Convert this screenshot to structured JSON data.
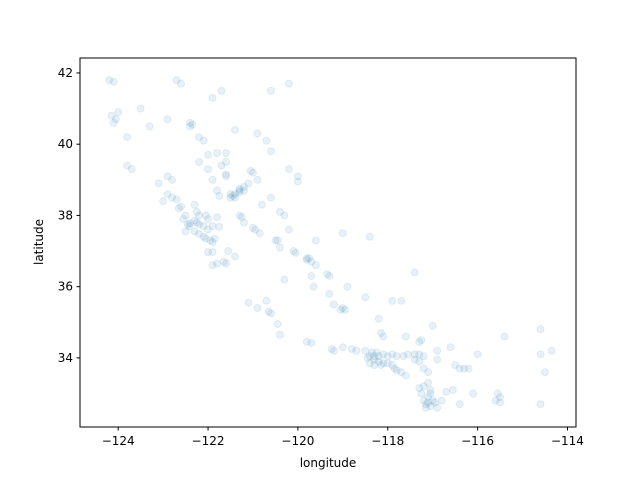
{
  "chart_data": {
    "type": "scatter",
    "xlabel": "longitude",
    "ylabel": "latitude",
    "color": "#1f77b4",
    "alpha": 0.1,
    "xlim": [
      -124.85,
      -113.81
    ],
    "ylim": [
      32.06,
      42.42
    ],
    "xticks": [
      {
        "value": -124,
        "label": "−124"
      },
      {
        "value": -122,
        "label": "−122"
      },
      {
        "value": -120,
        "label": "−120"
      },
      {
        "value": -118,
        "label": "−118"
      },
      {
        "value": -116,
        "label": "−116"
      },
      {
        "value": -114,
        "label": "−114"
      }
    ],
    "yticks": [
      34,
      36,
      38,
      40,
      42
    ],
    "x": [
      -124.2,
      -124.1,
      -124.15,
      -124.1,
      -124.05,
      -124.0,
      -123.8,
      -123.7,
      -123.8,
      -123.5,
      -123.3,
      -122.9,
      -122.4,
      -122.35,
      -122.4,
      -122.2,
      -122.1,
      -121.9,
      -122.6,
      -122.7,
      -121.7,
      -120.6,
      -120.2,
      -121.4,
      -120.9,
      -120.7,
      -121.8,
      -121.6,
      -121.6,
      -121.6,
      -121.6,
      -121.7,
      -122.0,
      -122.2,
      -122.0,
      -121.9,
      -121.0,
      -121.05,
      -120.9,
      -121.1,
      -120.2,
      -120.0,
      -120.0,
      -120.6,
      -121.5,
      -121.4,
      -121.3,
      -121.45,
      -121.3,
      -121.2,
      -121.5,
      -121.4,
      -121.75,
      -121.8,
      -121.2,
      -121.3,
      -122.4,
      -122.45,
      -122.42,
      -122.3,
      -122.25,
      -122.2,
      -122.1,
      -122.0,
      -122.05,
      -121.95,
      -121.85,
      -121.9,
      -122.1,
      -122.2,
      -122.3,
      -122.5,
      -122.0,
      -122.05,
      -122.2,
      -122.25,
      -122.5,
      -122.6,
      -122.7,
      -122.8,
      -122.3,
      -121.8,
      -121.9,
      -121.75,
      -122.65,
      -122.55,
      -121.9,
      -121.8,
      -121.65,
      -121.6,
      -122.0,
      -121.9,
      -121.55,
      -121.4,
      -123.0,
      -122.9,
      -123.1,
      -122.9,
      -122.8,
      -121.3,
      -121.25,
      -121.0,
      -120.95,
      -120.85,
      -120.5,
      -120.45,
      -120.1,
      -120.05,
      -119.8,
      -119.75,
      -119.7,
      -119.8,
      -119.3,
      -119.35,
      -119.6,
      -119.0,
      -119.05,
      -118.95,
      -119.2,
      -119.3,
      -119.7,
      -119.65,
      -120.3,
      -120.4,
      -121.2,
      -120.3,
      -120.4,
      -120.8,
      -120.6,
      -120.2,
      -119.6,
      -119.0,
      -118.4,
      -118.9,
      -118.5,
      -118.2,
      -117.9,
      -117.7,
      -117.4,
      -120.65,
      -120.6,
      -120.7,
      -120.45,
      -120.4,
      -119.8,
      -119.7,
      -119.25,
      -119.2,
      -119.0,
      -118.8,
      -118.7,
      -121.1,
      -120.9,
      -118.4,
      -118.3,
      -118.2,
      -118.3,
      -118.2,
      -118.1,
      -118.0,
      -118.35,
      -118.25,
      -118.5,
      -118.45,
      -118.1,
      -118.0,
      -117.9,
      -117.8,
      -117.9,
      -117.85,
      -117.8,
      -117.7,
      -117.6,
      -118.15,
      -118.3,
      -118.4,
      -117.65,
      -117.55,
      -117.4,
      -117.3,
      -117.2,
      -117.4,
      -117.3,
      -117.2,
      -117.1,
      -117.25,
      -117.3,
      -117.0,
      -117.6,
      -118.1,
      -118.15,
      -116.5,
      -116.4,
      -116.3,
      -116.2,
      -116.9,
      -116.0,
      -116.6,
      -116.1,
      -115.6,
      -115.5,
      -115.5,
      -115.55,
      -114.6,
      -114.5,
      -114.6,
      -114.35,
      -114.6,
      -115.4,
      -116.9,
      -117.15,
      -117.1,
      -117.05,
      -117.2,
      -117.1,
      -117.05,
      -117.25,
      -117.3,
      -117.2,
      -117.0,
      -116.95,
      -117.05,
      -117.1,
      -117.15,
      -116.8,
      -116.7,
      -116.4,
      -116.9,
      -116.55
    ],
    "y": [
      41.8,
      41.75,
      40.8,
      40.6,
      40.7,
      40.9,
      39.4,
      39.3,
      40.2,
      41.0,
      40.5,
      40.7,
      40.6,
      40.55,
      40.5,
      40.2,
      40.1,
      41.3,
      41.7,
      41.8,
      41.5,
      41.5,
      41.7,
      40.4,
      40.3,
      40.1,
      39.75,
      39.75,
      39.5,
      39.15,
      39.1,
      39.4,
      39.7,
      39.5,
      39.3,
      39.0,
      39.2,
      39.25,
      39.0,
      38.9,
      39.3,
      39.1,
      38.95,
      39.8,
      38.6,
      38.6,
      38.65,
      38.55,
      38.7,
      38.7,
      38.5,
      38.5,
      38.55,
      38.7,
      38.8,
      38.75,
      37.78,
      37.75,
      37.7,
      37.85,
      37.8,
      37.75,
      37.7,
      37.6,
      37.35,
      37.3,
      37.35,
      37.25,
      37.4,
      37.48,
      37.55,
      37.55,
      37.9,
      38.0,
      38.0,
      38.1,
      38.0,
      38.25,
      38.45,
      38.5,
      38.3,
      37.95,
      37.7,
      37.68,
      38.2,
      37.9,
      36.6,
      36.65,
      36.7,
      36.65,
      36.97,
      36.97,
      37.0,
      36.85,
      38.4,
      38.6,
      38.9,
      39.1,
      39.0,
      38.0,
      37.95,
      37.65,
      37.6,
      37.5,
      37.3,
      37.3,
      37.0,
      36.95,
      36.75,
      36.8,
      36.7,
      36.8,
      36.3,
      36.35,
      36.6,
      35.4,
      35.35,
      35.35,
      35.5,
      35.8,
      36.3,
      36.0,
      36.2,
      37.1,
      37.8,
      38.0,
      38.1,
      38.3,
      38.5,
      37.6,
      37.3,
      37.5,
      37.4,
      36.0,
      35.7,
      35.1,
      35.6,
      35.6,
      36.4,
      35.3,
      35.25,
      35.6,
      34.95,
      34.65,
      34.45,
      34.42,
      34.25,
      34.2,
      34.3,
      34.25,
      34.2,
      35.55,
      35.4,
      34.05,
      34.05,
      34.05,
      33.95,
      33.9,
      33.85,
      33.85,
      34.15,
      34.15,
      34.2,
      34.0,
      34.1,
      34.05,
      34.1,
      34.05,
      33.8,
      33.7,
      33.65,
      33.6,
      33.5,
      33.8,
      33.8,
      33.85,
      34.05,
      34.1,
      34.1,
      34.1,
      34.05,
      33.95,
      33.9,
      33.7,
      33.6,
      34.5,
      34.45,
      34.9,
      34.6,
      34.6,
      34.7,
      33.8,
      33.7,
      33.7,
      33.7,
      33.95,
      34.1,
      34.3,
      33.0,
      32.8,
      32.75,
      32.9,
      33.0,
      32.7,
      33.6,
      34.8,
      34.2,
      34.1,
      34.6,
      34.2,
      32.7,
      32.75,
      32.65,
      32.8,
      32.9,
      33.0,
      33.0,
      33.15,
      33.2,
      32.8,
      32.75,
      33.1,
      33.3,
      32.6,
      32.8,
      33.05,
      32.7,
      32.6,
      33.1
    ]
  }
}
